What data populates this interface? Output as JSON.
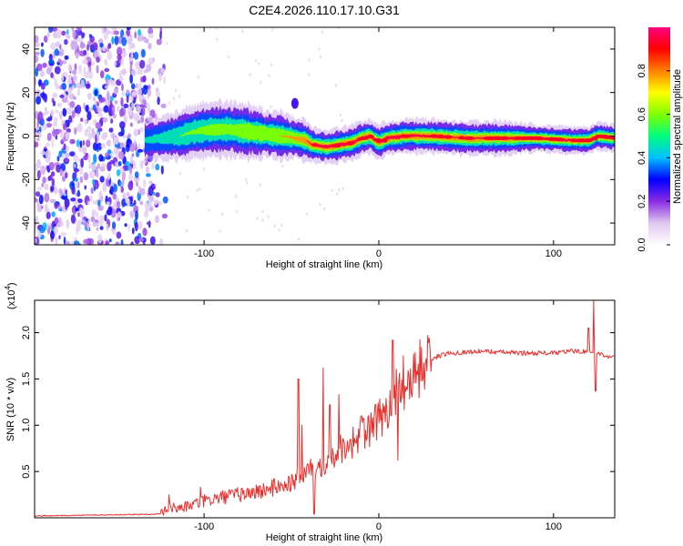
{
  "figure": {
    "title": "C2E4.2026.110.17.10.G31"
  },
  "chart_data": [
    {
      "type": "heatmap",
      "name": "spectrogram",
      "xlabel": "Height of straight line (km)",
      "ylabel": "Frequency (Hz)",
      "xlim": [
        -197,
        135
      ],
      "ylim": [
        -50,
        50
      ],
      "xticks": [
        -100,
        0,
        100
      ],
      "xtick_labels": [
        "-100",
        "0",
        "100"
      ],
      "yticks": [
        -40,
        -20,
        0,
        20,
        40
      ],
      "ytick_labels": [
        "-40",
        "-20",
        "0",
        "20",
        "40"
      ],
      "noise_region_x": [
        -197,
        -130
      ],
      "ridge": {
        "x": [
          -134,
          -125,
          -115,
          -105,
          -95,
          -85,
          -75,
          -65,
          -55,
          -48,
          -42,
          -38,
          -30,
          -22,
          -15,
          -10,
          -5,
          0,
          5,
          15,
          30,
          50,
          70,
          90,
          110,
          120,
          125,
          135
        ],
        "freq": [
          -2,
          -1,
          0,
          2,
          3,
          3,
          2,
          1,
          0,
          -1,
          -2,
          -4,
          -5,
          -4,
          -3,
          -1,
          0,
          -3,
          -1,
          0,
          0,
          -1,
          -1,
          -1,
          -2,
          -2,
          0,
          -1
        ],
        "width": [
          3,
          3,
          3.5,
          4,
          4,
          4,
          4,
          3.5,
          3.5,
          3,
          3,
          2.5,
          2.5,
          2.5,
          2.5,
          2.5,
          2.5,
          2.5,
          2.5,
          2.5,
          2.5,
          2.5,
          2.5,
          2,
          2,
          2,
          2,
          2
        ],
        "amp": [
          0.35,
          0.4,
          0.45,
          0.5,
          0.55,
          0.55,
          0.6,
          0.6,
          0.65,
          0.7,
          0.8,
          0.9,
          0.95,
          0.95,
          0.95,
          0.95,
          0.95,
          0.95,
          0.95,
          0.95,
          0.9,
          0.85,
          0.9,
          0.95,
          0.95,
          0.95,
          0.9,
          0.95
        ]
      },
      "blob": {
        "x": -48,
        "freq": 15,
        "amp": 0.25
      },
      "colorbar": {
        "label": "Normalized spectral amplitude",
        "ticks": [
          0.0,
          0.2,
          0.4,
          0.6,
          0.8
        ],
        "tick_labels": [
          "0.0",
          "0.2",
          "0.4",
          "0.6",
          "0.8"
        ],
        "range": [
          0,
          1
        ],
        "stops": [
          "#ffffff",
          "#e0c8f0",
          "#8a2be2",
          "#0000ff",
          "#00bfff",
          "#00ff80",
          "#80ff00",
          "#ffff00",
          "#ff8000",
          "#ff0000",
          "#ff0080"
        ]
      }
    },
    {
      "type": "line",
      "name": "snr",
      "xlabel": "Height of straight line (km)",
      "ylabel": "SNR (10 * v/v)",
      "scale_label": "(x10",
      "scale_exponent": "4",
      "scale_close": ")",
      "xlim": [
        -197,
        135
      ],
      "ylim": [
        0,
        2.35
      ],
      "xticks": [
        -100,
        0,
        100
      ],
      "xtick_labels": [
        "-100",
        "0",
        "100"
      ],
      "yticks": [
        0.5,
        1.0,
        1.5,
        2.0
      ],
      "ytick_labels": [
        "0.5",
        "1.0",
        "1.5",
        "2.0"
      ],
      "color": "#e8302e",
      "anchors": {
        "x": [
          -197,
          -125,
          -120,
          -110,
          -100,
          -90,
          -80,
          -70,
          -60,
          -50,
          -45,
          -40,
          -35,
          -30,
          -25,
          -20,
          -15,
          -10,
          -5,
          0,
          5,
          10,
          15,
          20,
          25,
          30,
          40,
          60,
          80,
          100,
          110,
          118,
          125,
          135
        ],
        "y": [
          0.02,
          0.04,
          0.1,
          0.12,
          0.18,
          0.22,
          0.25,
          0.28,
          0.32,
          0.38,
          0.45,
          0.52,
          0.55,
          0.62,
          0.7,
          0.78,
          0.82,
          0.88,
          0.95,
          1.05,
          1.2,
          1.35,
          1.45,
          1.55,
          1.65,
          1.72,
          1.78,
          1.8,
          1.78,
          1.78,
          1.8,
          1.8,
          1.78,
          1.73
        ]
      },
      "spikes": [
        {
          "x": -120,
          "y": 0.25
        },
        {
          "x": -102,
          "y": 0.33
        },
        {
          "x": -60,
          "y": 0.42
        },
        {
          "x": -46,
          "y": 1.5
        },
        {
          "x": -44,
          "y": 1.0
        },
        {
          "x": -37,
          "y": 0.04
        },
        {
          "x": -32,
          "y": 1.62
        },
        {
          "x": -28,
          "y": 1.22
        },
        {
          "x": -23,
          "y": 1.33
        },
        {
          "x": -10,
          "y": 1.1
        },
        {
          "x": 8,
          "y": 1.92
        },
        {
          "x": 11,
          "y": 0.62
        },
        {
          "x": 14,
          "y": 1.75
        },
        {
          "x": 123,
          "y": 2.35
        },
        {
          "x": 124,
          "y": 1.37
        },
        {
          "x": 120,
          "y": 2.05
        }
      ]
    }
  ]
}
